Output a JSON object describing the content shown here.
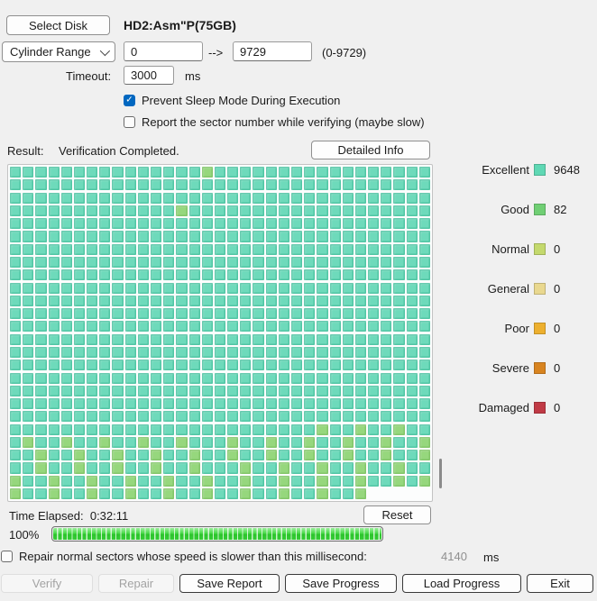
{
  "header": {
    "select_disk_label": "Select Disk",
    "disk_title": "HD2:Asm\"P(75GB)"
  },
  "range": {
    "mode": "Cylinder Range",
    "from": "0",
    "arrow": "-->",
    "to": "9729",
    "hint": "(0-9729)"
  },
  "timeout": {
    "label": "Timeout:",
    "value": "3000",
    "unit": "ms"
  },
  "options": [
    {
      "label": "Prevent Sleep Mode During Execution",
      "checked": true
    },
    {
      "label": "Report the sector number while verifying (maybe slow)",
      "checked": false
    }
  ],
  "result": {
    "label": "Result:",
    "text": "Verification Completed.",
    "detailed_info_label": "Detailed Info"
  },
  "legend": [
    {
      "label": "Excellent",
      "count": "9648",
      "color": "#5fd8b4"
    },
    {
      "label": "Good",
      "count": "82",
      "color": "#70cf74"
    },
    {
      "label": "Normal",
      "count": "0",
      "color": "#c4d96d"
    },
    {
      "label": "General",
      "count": "0",
      "color": "#e9d88f"
    },
    {
      "label": "Poor",
      "count": "0",
      "color": "#edb02f"
    },
    {
      "label": "Severe",
      "count": "0",
      "color": "#d88420"
    },
    {
      "label": "Damaged",
      "count": "0",
      "color": "#c03a45"
    }
  ],
  "grid": {
    "rows": 26,
    "cols": 33,
    "last_row_cells": 28,
    "excellent_color": "#6edabb",
    "good_color": "#96d77d",
    "good_cells": {
      "0": [
        15
      ],
      "3": [
        13
      ],
      "20": [
        24,
        27,
        30
      ],
      "21": [
        1,
        4,
        7,
        10,
        13,
        17,
        20,
        23,
        26,
        29,
        32
      ],
      "22": [
        2,
        5,
        8,
        11,
        14,
        17,
        20,
        23,
        26,
        29,
        32
      ],
      "23": [
        2,
        5,
        8,
        11,
        14,
        18,
        21,
        24,
        27,
        30
      ],
      "24": [
        0,
        3,
        6,
        9,
        12,
        15,
        18,
        21,
        24,
        27,
        30,
        32
      ],
      "25": [
        0,
        3,
        6,
        9,
        12,
        15,
        18,
        21,
        24,
        27
      ]
    }
  },
  "status": {
    "time_label": "Time Elapsed:",
    "time_value": "0:32:11",
    "reset_label": "Reset",
    "percent": "100%"
  },
  "repair_option": {
    "label": "Repair normal sectors whose speed is slower than this millisecond:",
    "value": "4140",
    "unit": "ms",
    "checked": false
  },
  "actions": [
    {
      "label": "Verify",
      "disabled": true
    },
    {
      "label": "Repair",
      "disabled": true
    },
    {
      "label": "Save Report",
      "disabled": false
    },
    {
      "label": "Save Progress",
      "disabled": false
    },
    {
      "label": "Load Progress",
      "disabled": false
    },
    {
      "label": "Exit",
      "disabled": false
    }
  ]
}
